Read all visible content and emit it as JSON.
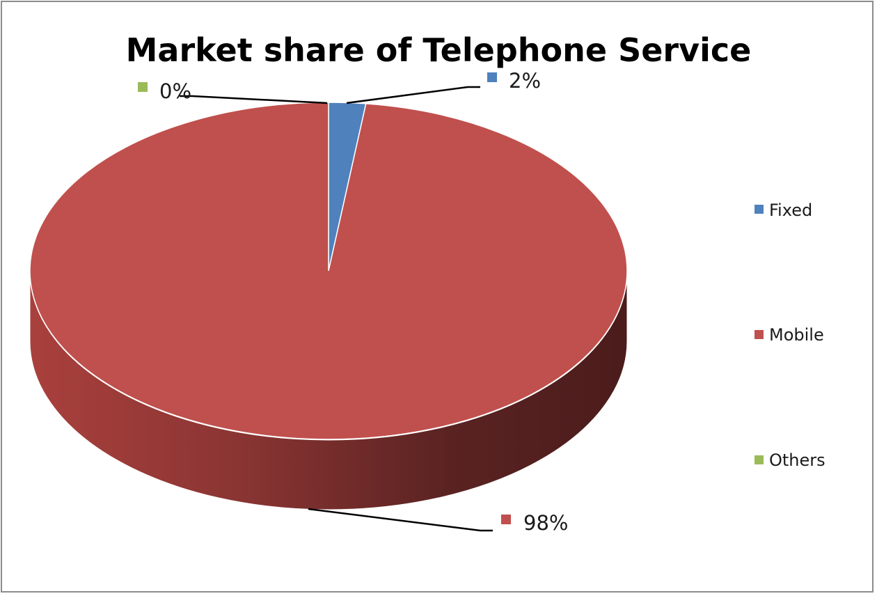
{
  "chart_data": {
    "type": "pie",
    "title": "Market share of Telephone Service",
    "categories": [
      "Fixed",
      "Mobile",
      "Others"
    ],
    "values": [
      2,
      98,
      0
    ],
    "data_labels": [
      "2%",
      "98%",
      "0%"
    ],
    "colors": [
      "#4f81bd",
      "#c0504d",
      "#9bbb59"
    ],
    "legend": {
      "position": "right",
      "items": [
        {
          "label": "Fixed",
          "color": "#4f81bd"
        },
        {
          "label": "Mobile",
          "color": "#c0504d"
        },
        {
          "label": "Others",
          "color": "#9bbb59"
        }
      ]
    },
    "style": "3d-pie"
  }
}
